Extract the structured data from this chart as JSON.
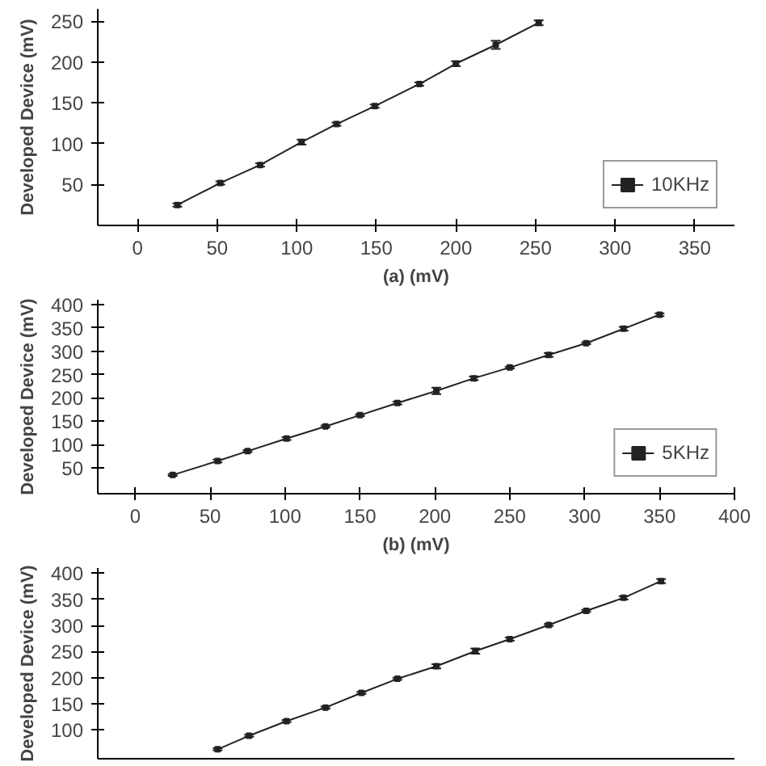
{
  "chart_data": [
    {
      "type": "line",
      "xlabel": "(a) (mV)",
      "ylabel": "Developed Device (mV)",
      "xlim": [
        -25,
        375
      ],
      "ylim": [
        0,
        265
      ],
      "xticks": [
        0,
        50,
        100,
        150,
        200,
        250,
        300,
        350
      ],
      "yticks": [
        50,
        100,
        150,
        200,
        250
      ],
      "marker": "square",
      "line_style": "solid",
      "legend": "bottom right",
      "grid": false,
      "series": [
        {
          "name": "10KHz",
          "color": "#222222",
          "x": [
            25,
            52,
            77,
            103,
            125,
            149,
            177,
            200,
            225,
            252
          ],
          "values": [
            25,
            52,
            74,
            102,
            124,
            146,
            173,
            198,
            221,
            248
          ],
          "errors": [
            2,
            2,
            2,
            3,
            2,
            2,
            2,
            3,
            5,
            3
          ]
        }
      ]
    },
    {
      "type": "line",
      "xlabel": "(b) (mV)",
      "ylabel": "Developed Device (mV)",
      "xlim": [
        -25,
        400
      ],
      "ylim": [
        -5,
        410
      ],
      "xticks": [
        0,
        50,
        100,
        150,
        200,
        250,
        300,
        350,
        400
      ],
      "yticks": [
        50,
        100,
        150,
        200,
        250,
        300,
        350,
        400
      ],
      "marker": "square",
      "line_style": "solid",
      "legend": "bottom right",
      "grid": false,
      "series": [
        {
          "name": "5KHz",
          "color": "#222222",
          "x": [
            25,
            55,
            75,
            101,
            127,
            150,
            175,
            201,
            226,
            250,
            276,
            301,
            326,
            350
          ],
          "values": [
            35,
            65,
            86,
            113,
            139,
            163,
            189,
            215,
            242,
            265,
            292,
            317,
            348,
            378
          ],
          "errors": [
            2,
            3,
            2,
            3,
            2,
            2,
            3,
            7,
            4,
            2,
            4,
            2,
            4,
            3
          ]
        }
      ]
    },
    {
      "type": "line",
      "ylabel": "Developed Device (mV)",
      "xlim": [
        -25,
        400
      ],
      "ylim": [
        45,
        410
      ],
      "yticks": [
        100,
        150,
        200,
        250,
        300,
        350,
        400
      ],
      "marker": "square",
      "line_style": "solid",
      "grid": false,
      "tick_labels": "y",
      "series": [
        {
          "color": "#222222",
          "x": [
            55,
            76,
            101,
            127,
            151,
            175,
            201,
            227,
            250,
            276,
            301,
            326,
            351
          ],
          "values": [
            63,
            89,
            117,
            143,
            171,
            198,
            222,
            251,
            274,
            301,
            328,
            353,
            385
          ],
          "errors": [
            2,
            2,
            2,
            2,
            2,
            2,
            4,
            5,
            3,
            2,
            2,
            3,
            4
          ]
        }
      ]
    }
  ]
}
